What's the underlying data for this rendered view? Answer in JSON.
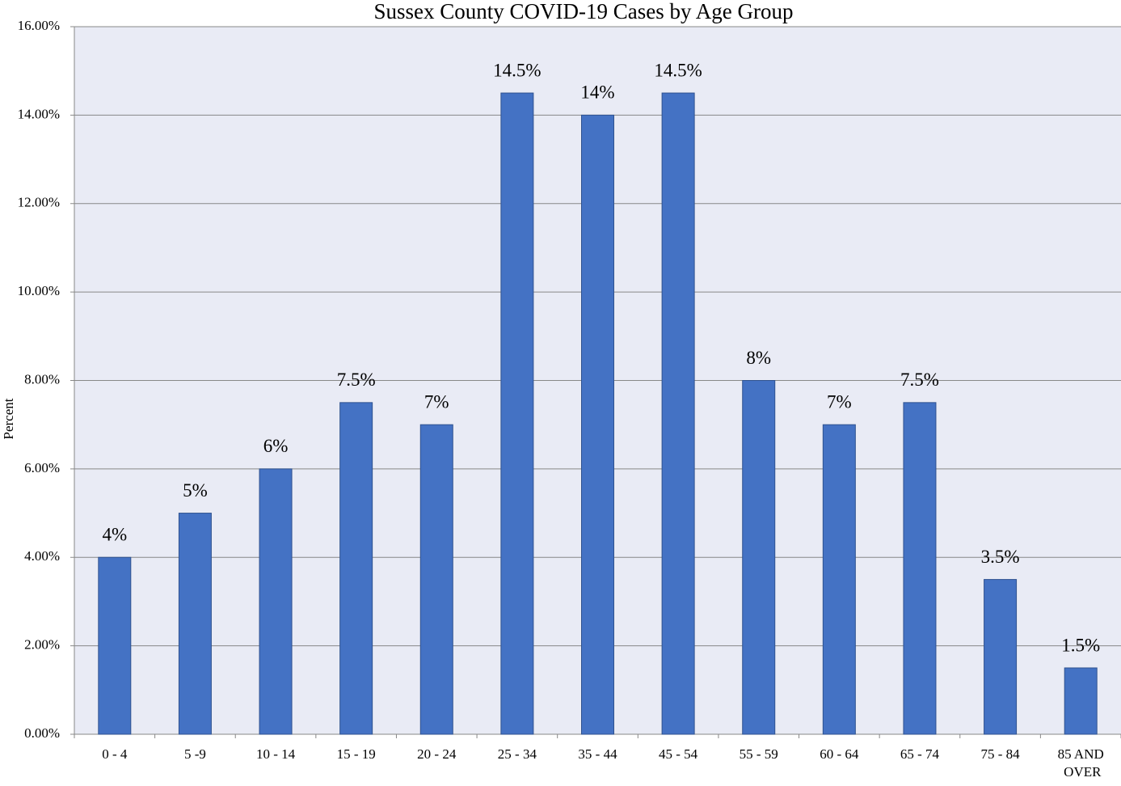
{
  "chart_data": {
    "type": "bar",
    "title": "Sussex County COVID-19 Cases by Age Group",
    "y_label": "Percent",
    "categories": [
      "0 - 4",
      "5 -9",
      "10 - 14",
      "15 - 19",
      "20 - 24",
      "25 - 34",
      "35 - 44",
      "45 - 54",
      "55 - 59",
      "60 - 64",
      "65 - 74",
      "75 - 84",
      "85 AND OVER"
    ],
    "values": [
      4,
      5,
      6,
      7.5,
      7,
      14.5,
      14,
      14.5,
      8,
      7,
      7.5,
      3.5,
      1.5
    ],
    "value_labels": [
      "4%",
      "5%",
      "6%",
      "7.5%",
      "7%",
      "14.5%",
      "14%",
      "14.5%",
      "8%",
      "7%",
      "7.5%",
      "3.5%",
      "1.5%"
    ],
    "color": "#4472c4",
    "ylim": [
      0,
      16
    ],
    "yticks": [
      {
        "value": 0,
        "label": "0.00%"
      },
      {
        "value": 2,
        "label": "2.00%"
      },
      {
        "value": 4,
        "label": "4.00%"
      },
      {
        "value": 6,
        "label": "6.00%"
      },
      {
        "value": 8,
        "label": "8.00%"
      },
      {
        "value": 10,
        "label": "10.00%"
      },
      {
        "value": 12,
        "label": "12.00%"
      },
      {
        "value": 14,
        "label": "14.00%"
      },
      {
        "value": 16,
        "label": "16.00%"
      }
    ],
    "grid": true
  }
}
